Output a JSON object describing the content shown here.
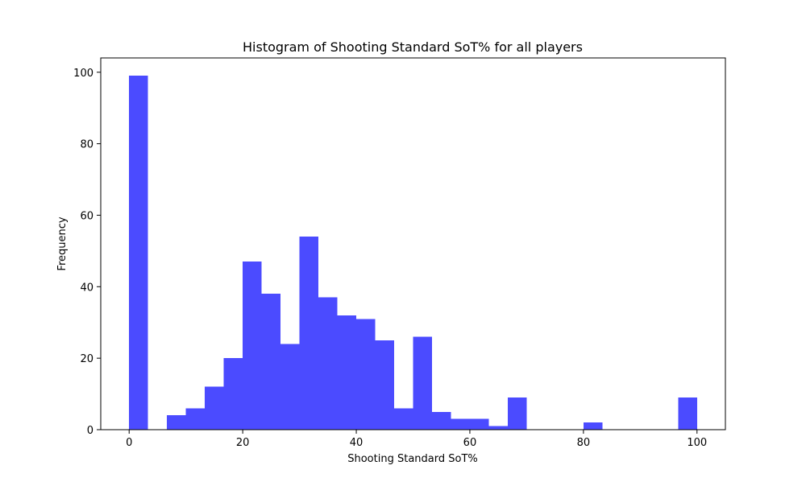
{
  "chart_data": {
    "type": "bar",
    "title": "Histogram of Shooting Standard SoT% for all players",
    "xlabel": "Shooting Standard SoT%",
    "ylabel": "Frequency",
    "xlim": [
      -5,
      105
    ],
    "ylim": [
      0,
      104
    ],
    "xticks": [
      0,
      20,
      40,
      60,
      80,
      100
    ],
    "yticks": [
      0,
      20,
      40,
      60,
      80,
      100
    ],
    "bin_edges": [
      0,
      3.333,
      6.667,
      10,
      13.333,
      16.667,
      20,
      23.333,
      26.667,
      30,
      33.333,
      36.667,
      40,
      43.333,
      46.667,
      50,
      53.333,
      56.667,
      60,
      63.333,
      66.667,
      70,
      73.333,
      76.667,
      80,
      83.333,
      86.667,
      90,
      93.333,
      96.667,
      100
    ],
    "values": [
      99,
      0,
      4,
      6,
      12,
      20,
      47,
      38,
      24,
      54,
      37,
      32,
      31,
      25,
      6,
      26,
      5,
      3,
      3,
      1,
      9,
      0,
      0,
      0,
      2,
      0,
      0,
      0,
      0,
      9
    ],
    "bar_color": "#4b4bff",
    "grid": false,
    "legend": "none"
  }
}
